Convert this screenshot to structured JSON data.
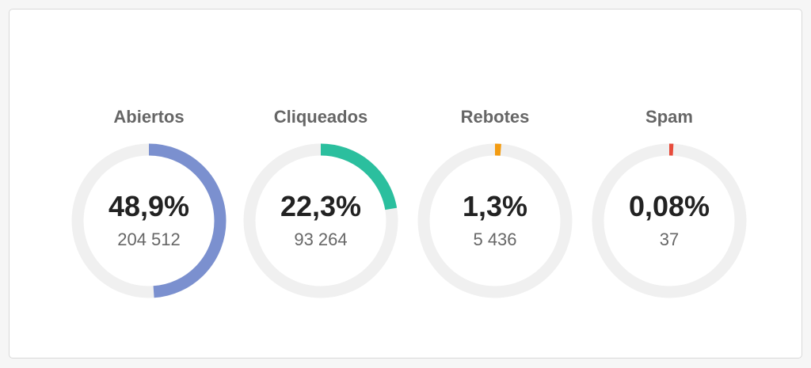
{
  "metrics": [
    {
      "label": "Abiertos",
      "percent": "48,9%",
      "count": "204 512",
      "fraction": 0.489,
      "color": "#7b90cf"
    },
    {
      "label": "Cliqueados",
      "percent": "22,3%",
      "count": "93 264",
      "fraction": 0.223,
      "color": "#2bbf9e"
    },
    {
      "label": "Rebotes",
      "percent": "1,3%",
      "count": "5 436",
      "fraction": 0.013,
      "color": "#f39c12"
    },
    {
      "label": "Spam",
      "percent": "0,08%",
      "count": "37",
      "fraction": 0.0008,
      "color": "#e74c3c"
    }
  ],
  "colors": {
    "track": "#f0f0f0",
    "card_background": "#ffffff"
  }
}
